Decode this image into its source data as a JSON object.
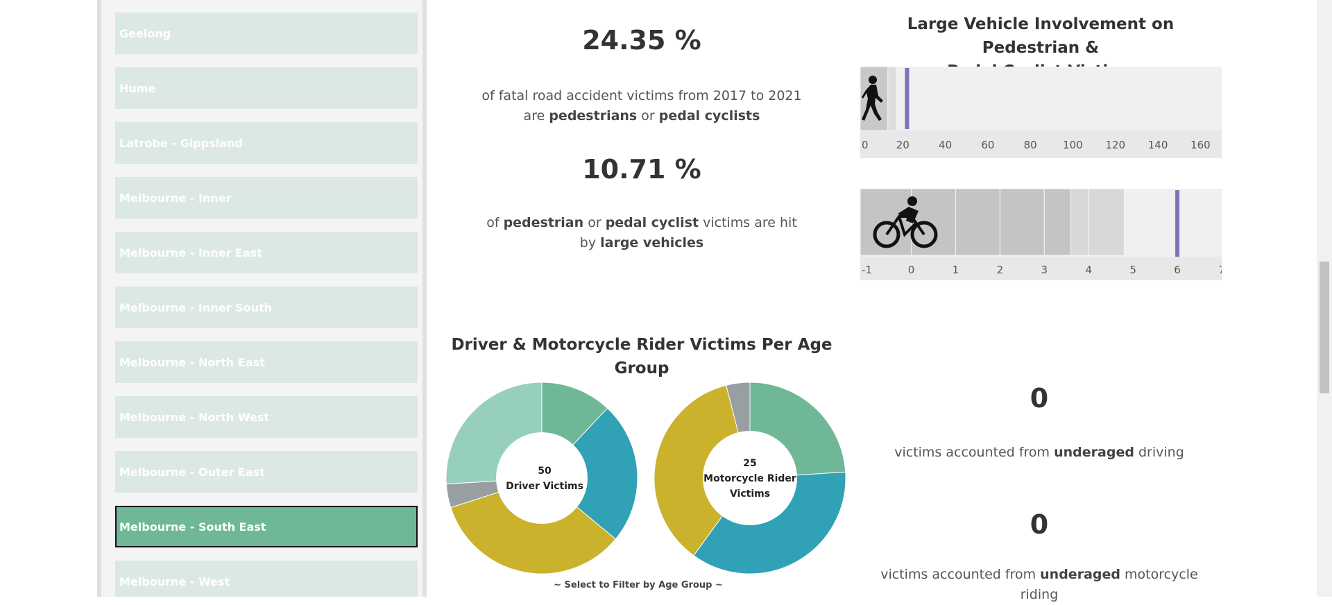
{
  "sidebar": {
    "regions": [
      {
        "label": "Geelong",
        "selected": false
      },
      {
        "label": "Hume",
        "selected": false
      },
      {
        "label": "Latrobe - Gippsland",
        "selected": false
      },
      {
        "label": "Melbourne - Inner",
        "selected": false
      },
      {
        "label": "Melbourne - Inner East",
        "selected": false
      },
      {
        "label": "Melbourne - Inner South",
        "selected": false
      },
      {
        "label": "Melbourne - North East",
        "selected": false
      },
      {
        "label": "Melbourne - North West",
        "selected": false
      },
      {
        "label": "Melbourne - Outer East",
        "selected": false
      },
      {
        "label": "Melbourne - South East",
        "selected": true
      },
      {
        "label": "Melbourne - West",
        "selected": false
      }
    ]
  },
  "kpi1": {
    "value": "24.35 %",
    "line1": "of fatal road accident victims from 2017 to 2021",
    "line2_pre": "are ",
    "line2_b1": "pedestrians",
    "line2_mid": " or ",
    "line2_b2": "pedal cyclists"
  },
  "kpi2": {
    "value": "10.71 %",
    "line1_pre": "of ",
    "line1_b1": "pedestrian",
    "line1_mid": " or ",
    "line1_b2": "pedal cyclist",
    "line1_post": " victims are hit",
    "line2_pre": "by ",
    "line2_b1": "large vehicles"
  },
  "large_vehicle": {
    "title_line1": "Large Vehicle Involvement on Pedestrian &",
    "title_line2": "Pedal Cyclist Victims",
    "pedestrian_icon": "pedestrian-icon",
    "cyclist_icon": "cyclist-icon"
  },
  "age_group": {
    "title_line1": "Driver & Motorcycle Rider Victims Per Age",
    "title_line2": "Group",
    "driver_center_value": "50",
    "driver_center_label": "Driver Victims",
    "rider_center_value": "25",
    "rider_center_label_1": "Motorcycle Rider",
    "rider_center_label_2": "Victims",
    "filter_hint": "~ Select to Filter by Age Group ~"
  },
  "underaged": {
    "driving_value": "0",
    "driving_pre": "victims accounted from ",
    "driving_b": "underaged",
    "driving_post": " driving",
    "moto_value": "0",
    "moto_pre": "victims accounted from ",
    "moto_b": "underaged",
    "moto_post": " motorcycle",
    "moto_line2": "riding"
  },
  "colors": {
    "accent_purple": "#7b74b7",
    "green_dark": "#6fb797",
    "green_light": "#97cfbd",
    "teal": "#31a1b5",
    "gold": "#cbb22c",
    "gray": "#999ea2"
  },
  "chart_data": [
    {
      "type": "bar",
      "title": "Large Vehicle Involvement on Pedestrian & Pedal Cyclist Victims",
      "series_label": "Pedestrian",
      "x_ticks": [
        "0",
        "20",
        "40",
        "60",
        "80",
        "100",
        "120",
        "140",
        "160"
      ],
      "xlim": [
        0,
        170
      ],
      "bands": [
        13,
        17
      ],
      "reference_line": 22
    },
    {
      "type": "bar",
      "series_label": "Pedal cyclist",
      "x_ticks": [
        "-1",
        "0",
        "1",
        "2",
        "3",
        "4",
        "5",
        "6",
        "7"
      ],
      "xlim": [
        -1.15,
        7
      ],
      "bands": [
        0,
        1,
        2,
        3,
        3.6,
        4,
        4.8
      ],
      "reference_line": 6
    },
    {
      "type": "pie",
      "title": "Driver Victims",
      "total": 50,
      "slices": [
        {
          "color": "#6fb797",
          "value": 6
        },
        {
          "color": "#31a1b5",
          "value": 12
        },
        {
          "color": "#cbb22c",
          "value": 17
        },
        {
          "color": "#999ea2",
          "value": 2
        },
        {
          "color": "#97cfbd",
          "value": 13
        }
      ]
    },
    {
      "type": "pie",
      "title": "Motorcycle Rider Victims",
      "total": 25,
      "slices": [
        {
          "color": "#6fb797",
          "value": 6
        },
        {
          "color": "#31a1b5",
          "value": 9
        },
        {
          "color": "#cbb22c",
          "value": 9
        },
        {
          "color": "#999ea2",
          "value": 1
        }
      ]
    }
  ]
}
